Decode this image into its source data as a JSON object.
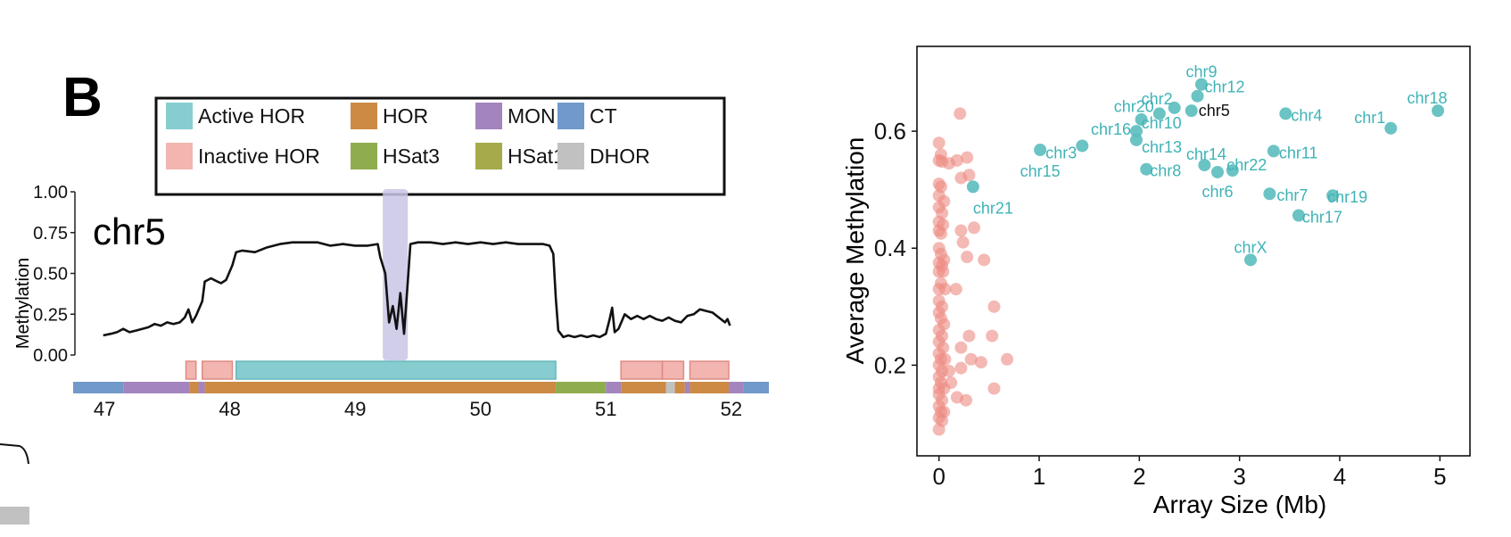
{
  "panel_label": "B",
  "legend": {
    "items": [
      {
        "label": "Active HOR",
        "color": "#87cdd0"
      },
      {
        "label": "HOR",
        "color": "#cc8a44"
      },
      {
        "label": "MON",
        "color": "#a384be"
      },
      {
        "label": "CT",
        "color": "#7199c9"
      },
      {
        "label": "Inactive HOR",
        "color": "#f2b5b0"
      },
      {
        "label": "HSat3",
        "color": "#8fac4f"
      },
      {
        "label": "HSat1",
        "color": "#a6aa4a"
      },
      {
        "label": "DHOR",
        "color": "#c1c1c1"
      }
    ]
  },
  "colors": {
    "line": "#111111",
    "highlight": "#c9c6e5",
    "active_point": "#5bbdbe",
    "inactive_point": "#ec8b82",
    "active_label": "#3fb3b6",
    "frame": "#111111"
  },
  "chart_data": [
    {
      "type": "line",
      "title": "chr5",
      "xlabel": "",
      "ylabel": "Methylation",
      "xlim": [
        46.75,
        52.3
      ],
      "ylim": [
        0,
        1.0
      ],
      "xticks": [
        "47",
        "48",
        "49",
        "50",
        "51",
        "52"
      ],
      "yticks": [
        "0.00",
        "0.25",
        "0.50",
        "0.75",
        "1.00"
      ],
      "highlight_region": [
        49.22,
        49.42
      ],
      "series": [
        {
          "points": [
            [
              46.99,
              0.12
            ],
            [
              47.05,
              0.13
            ],
            [
              47.1,
              0.14
            ],
            [
              47.15,
              0.16
            ],
            [
              47.2,
              0.14
            ],
            [
              47.25,
              0.15
            ],
            [
              47.3,
              0.16
            ],
            [
              47.35,
              0.17
            ],
            [
              47.4,
              0.19
            ],
            [
              47.45,
              0.18
            ],
            [
              47.5,
              0.2
            ],
            [
              47.55,
              0.19
            ],
            [
              47.6,
              0.2
            ],
            [
              47.64,
              0.23
            ],
            [
              47.67,
              0.28
            ],
            [
              47.7,
              0.2
            ],
            [
              47.73,
              0.24
            ],
            [
              47.78,
              0.33
            ],
            [
              47.8,
              0.45
            ],
            [
              47.85,
              0.47
            ],
            [
              47.9,
              0.45
            ],
            [
              47.93,
              0.44
            ],
            [
              47.97,
              0.46
            ],
            [
              48.02,
              0.55
            ],
            [
              48.05,
              0.63
            ],
            [
              48.1,
              0.64
            ],
            [
              48.2,
              0.63
            ],
            [
              48.3,
              0.66
            ],
            [
              48.4,
              0.68
            ],
            [
              48.5,
              0.69
            ],
            [
              48.6,
              0.69
            ],
            [
              48.7,
              0.69
            ],
            [
              48.8,
              0.67
            ],
            [
              48.9,
              0.68
            ],
            [
              49.0,
              0.67
            ],
            [
              49.1,
              0.67
            ],
            [
              49.18,
              0.68
            ],
            [
              49.2,
              0.6
            ],
            [
              49.24,
              0.5
            ],
            [
              49.27,
              0.2
            ],
            [
              49.3,
              0.3
            ],
            [
              49.33,
              0.16
            ],
            [
              49.36,
              0.38
            ],
            [
              49.39,
              0.13
            ],
            [
              49.42,
              0.45
            ],
            [
              49.44,
              0.68
            ],
            [
              49.5,
              0.69
            ],
            [
              49.6,
              0.69
            ],
            [
              49.7,
              0.68
            ],
            [
              49.8,
              0.69
            ],
            [
              49.9,
              0.68
            ],
            [
              50.0,
              0.69
            ],
            [
              50.1,
              0.68
            ],
            [
              50.2,
              0.69
            ],
            [
              50.3,
              0.68
            ],
            [
              50.4,
              0.68
            ],
            [
              50.5,
              0.68
            ],
            [
              50.55,
              0.67
            ],
            [
              50.58,
              0.62
            ],
            [
              50.6,
              0.35
            ],
            [
              50.62,
              0.15
            ],
            [
              50.66,
              0.11
            ],
            [
              50.7,
              0.12
            ],
            [
              50.75,
              0.11
            ],
            [
              50.8,
              0.12
            ],
            [
              50.85,
              0.11
            ],
            [
              50.9,
              0.12
            ],
            [
              50.95,
              0.11
            ],
            [
              51.0,
              0.13
            ],
            [
              51.03,
              0.22
            ],
            [
              51.05,
              0.29
            ],
            [
              51.07,
              0.14
            ],
            [
              51.1,
              0.16
            ],
            [
              51.15,
              0.25
            ],
            [
              51.2,
              0.22
            ],
            [
              51.25,
              0.24
            ],
            [
              51.3,
              0.22
            ],
            [
              51.35,
              0.24
            ],
            [
              51.4,
              0.22
            ],
            [
              51.45,
              0.21
            ],
            [
              51.5,
              0.23
            ],
            [
              51.55,
              0.21
            ],
            [
              51.6,
              0.2
            ],
            [
              51.65,
              0.24
            ],
            [
              51.7,
              0.25
            ],
            [
              51.75,
              0.28
            ],
            [
              51.8,
              0.27
            ],
            [
              51.85,
              0.26
            ],
            [
              51.9,
              0.23
            ],
            [
              51.95,
              0.2
            ],
            [
              51.97,
              0.22
            ],
            [
              51.99,
              0.18
            ]
          ]
        }
      ],
      "annotation_tracks": [
        {
          "name": "repeat_classes",
          "segments": [
            {
              "start": 46.75,
              "end": 47.15,
              "class": "CT"
            },
            {
              "start": 47.15,
              "end": 47.68,
              "class": "MON"
            },
            {
              "start": 47.68,
              "end": 47.75,
              "class": "HOR"
            },
            {
              "start": 47.75,
              "end": 47.8,
              "class": "MON"
            },
            {
              "start": 47.8,
              "end": 50.6,
              "class": "HOR"
            },
            {
              "start": 50.6,
              "end": 51.0,
              "class": "HSat3"
            },
            {
              "start": 51.0,
              "end": 51.12,
              "class": "MON"
            },
            {
              "start": 51.12,
              "end": 51.48,
              "class": "HOR"
            },
            {
              "start": 51.48,
              "end": 51.55,
              "class": "DHOR"
            },
            {
              "start": 51.55,
              "end": 51.63,
              "class": "HOR"
            },
            {
              "start": 51.63,
              "end": 51.67,
              "class": "MON"
            },
            {
              "start": 51.67,
              "end": 51.98,
              "class": "HOR"
            },
            {
              "start": 51.98,
              "end": 52.1,
              "class": "MON"
            },
            {
              "start": 52.1,
              "end": 52.3,
              "class": "CT"
            }
          ]
        },
        {
          "name": "hor_activity",
          "segments": [
            {
              "start": 47.65,
              "end": 47.73,
              "class": "Inactive HOR"
            },
            {
              "start": 47.78,
              "end": 48.02,
              "class": "Inactive HOR"
            },
            {
              "start": 48.05,
              "end": 50.6,
              "class": "Active HOR"
            },
            {
              "start": 51.12,
              "end": 51.45,
              "class": "Inactive HOR"
            },
            {
              "start": 51.45,
              "end": 51.62,
              "class": "Inactive HOR"
            },
            {
              "start": 51.67,
              "end": 51.98,
              "class": "Inactive HOR"
            }
          ]
        }
      ]
    },
    {
      "type": "scatter",
      "title": "",
      "xlabel": "Array Size (Mb)",
      "ylabel": "Average Methylation",
      "xlim": [
        -0.22,
        5.3
      ],
      "ylim": [
        0.045,
        0.745
      ],
      "xticks": [
        "0",
        "1",
        "2",
        "3",
        "4",
        "5"
      ],
      "yticks": [
        "0.2",
        "0.4",
        "0.6"
      ],
      "series": [
        {
          "name": "Active HOR",
          "points": [
            {
              "label": "chr9",
              "x": 2.62,
              "y": 0.68
            },
            {
              "label": "chr12",
              "x": 2.58,
              "y": 0.66
            },
            {
              "label": "chr2",
              "x": 2.35,
              "y": 0.64
            },
            {
              "label": "chr20",
              "x": 2.2,
              "y": 0.63
            },
            {
              "label": "chr5",
              "x": 2.52,
              "y": 0.635
            },
            {
              "label": "chr10",
              "x": 2.02,
              "y": 0.62
            },
            {
              "label": "chr16",
              "x": 1.97,
              "y": 0.6
            },
            {
              "label": "chr13",
              "x": 1.97,
              "y": 0.585
            },
            {
              "label": "chr3",
              "x": 1.43,
              "y": 0.575
            },
            {
              "label": "chr15",
              "x": 1.01,
              "y": 0.568
            },
            {
              "label": "chr8",
              "x": 2.07,
              "y": 0.535
            },
            {
              "label": "chr14",
              "x": 2.65,
              "y": 0.542
            },
            {
              "label": "chr22",
              "x": 2.93,
              "y": 0.533
            },
            {
              "label": "chr6",
              "x": 2.78,
              "y": 0.53
            },
            {
              "label": "chr11",
              "x": 3.34,
              "y": 0.566
            },
            {
              "label": "chr4",
              "x": 3.46,
              "y": 0.63
            },
            {
              "label": "chr1",
              "x": 4.51,
              "y": 0.605
            },
            {
              "label": "chr18",
              "x": 4.98,
              "y": 0.635
            },
            {
              "label": "chr7",
              "x": 3.3,
              "y": 0.493
            },
            {
              "label": "chr19",
              "x": 3.93,
              "y": 0.49
            },
            {
              "label": "chr17",
              "x": 3.59,
              "y": 0.456
            },
            {
              "label": "chr21",
              "x": 0.34,
              "y": 0.505
            },
            {
              "label": "chrX",
              "x": 3.11,
              "y": 0.38
            }
          ]
        },
        {
          "name": "Inactive HOR",
          "points": [
            {
              "x": 0.21,
              "y": 0.63
            },
            {
              "x": 0.0,
              "y": 0.58
            },
            {
              "x": 0.02,
              "y": 0.56
            },
            {
              "x": 0.0,
              "y": 0.55
            },
            {
              "x": 0.03,
              "y": 0.548
            },
            {
              "x": 0.1,
              "y": 0.545
            },
            {
              "x": 0.18,
              "y": 0.55
            },
            {
              "x": 0.28,
              "y": 0.555
            },
            {
              "x": 0.3,
              "y": 0.525
            },
            {
              "x": 0.22,
              "y": 0.52
            },
            {
              "x": 0.0,
              "y": 0.51
            },
            {
              "x": 0.02,
              "y": 0.505
            },
            {
              "x": 0.0,
              "y": 0.49
            },
            {
              "x": 0.05,
              "y": 0.48
            },
            {
              "x": 0.0,
              "y": 0.47
            },
            {
              "x": 0.03,
              "y": 0.46
            },
            {
              "x": 0.0,
              "y": 0.445
            },
            {
              "x": 0.04,
              "y": 0.44
            },
            {
              "x": 0.0,
              "y": 0.43
            },
            {
              "x": 0.02,
              "y": 0.425
            },
            {
              "x": 0.22,
              "y": 0.43
            },
            {
              "x": 0.35,
              "y": 0.435
            },
            {
              "x": 0.24,
              "y": 0.41
            },
            {
              "x": 0.0,
              "y": 0.4
            },
            {
              "x": 0.02,
              "y": 0.39
            },
            {
              "x": 0.05,
              "y": 0.38
            },
            {
              "x": 0.0,
              "y": 0.375
            },
            {
              "x": 0.03,
              "y": 0.37
            },
            {
              "x": 0.0,
              "y": 0.36
            },
            {
              "x": 0.04,
              "y": 0.36
            },
            {
              "x": 0.28,
              "y": 0.385
            },
            {
              "x": 0.45,
              "y": 0.38
            },
            {
              "x": 0.02,
              "y": 0.34
            },
            {
              "x": 0.0,
              "y": 0.33
            },
            {
              "x": 0.06,
              "y": 0.33
            },
            {
              "x": 0.17,
              "y": 0.33
            },
            {
              "x": 0.0,
              "y": 0.31
            },
            {
              "x": 0.03,
              "y": 0.3
            },
            {
              "x": 0.55,
              "y": 0.3
            },
            {
              "x": 0.0,
              "y": 0.29
            },
            {
              "x": 0.02,
              "y": 0.28
            },
            {
              "x": 0.05,
              "y": 0.27
            },
            {
              "x": 0.0,
              "y": 0.26
            },
            {
              "x": 0.03,
              "y": 0.25
            },
            {
              "x": 0.3,
              "y": 0.25
            },
            {
              "x": 0.53,
              "y": 0.25
            },
            {
              "x": 0.0,
              "y": 0.24
            },
            {
              "x": 0.04,
              "y": 0.23
            },
            {
              "x": 0.22,
              "y": 0.23
            },
            {
              "x": 0.0,
              "y": 0.22
            },
            {
              "x": 0.02,
              "y": 0.21
            },
            {
              "x": 0.06,
              "y": 0.21
            },
            {
              "x": 0.32,
              "y": 0.21
            },
            {
              "x": 0.42,
              "y": 0.205
            },
            {
              "x": 0.68,
              "y": 0.21
            },
            {
              "x": 0.0,
              "y": 0.2
            },
            {
              "x": 0.03,
              "y": 0.19
            },
            {
              "x": 0.1,
              "y": 0.19
            },
            {
              "x": 0.22,
              "y": 0.195
            },
            {
              "x": 0.0,
              "y": 0.18
            },
            {
              "x": 0.02,
              "y": 0.17
            },
            {
              "x": 0.12,
              "y": 0.17
            },
            {
              "x": 0.0,
              "y": 0.16
            },
            {
              "x": 0.05,
              "y": 0.16
            },
            {
              "x": 0.55,
              "y": 0.16
            },
            {
              "x": 0.0,
              "y": 0.15
            },
            {
              "x": 0.03,
              "y": 0.14
            },
            {
              "x": 0.18,
              "y": 0.145
            },
            {
              "x": 0.27,
              "y": 0.14
            },
            {
              "x": 0.0,
              "y": 0.13
            },
            {
              "x": 0.02,
              "y": 0.12
            },
            {
              "x": 0.05,
              "y": 0.12
            },
            {
              "x": 0.0,
              "y": 0.11
            },
            {
              "x": 0.03,
              "y": 0.105
            },
            {
              "x": 0.0,
              "y": 0.09
            }
          ]
        }
      ]
    }
  ]
}
